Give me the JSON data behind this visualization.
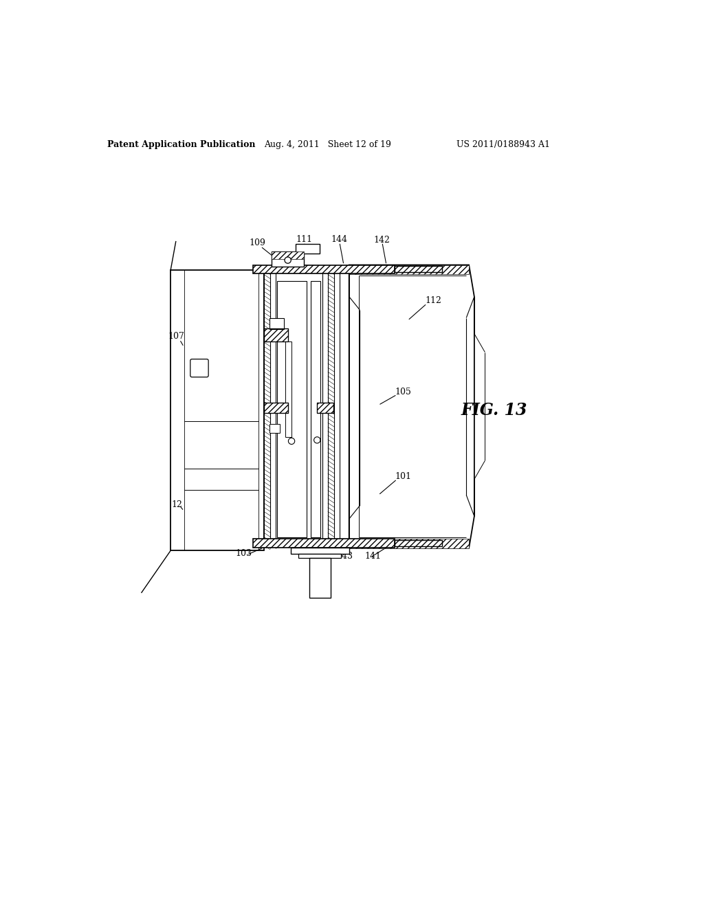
{
  "bg_color": "#ffffff",
  "header_left": "Patent Application Publication",
  "header_mid": "Aug. 4, 2011   Sheet 12 of 19",
  "header_right": "US 2011/0188943 A1",
  "fig_label": "FIG. 13"
}
